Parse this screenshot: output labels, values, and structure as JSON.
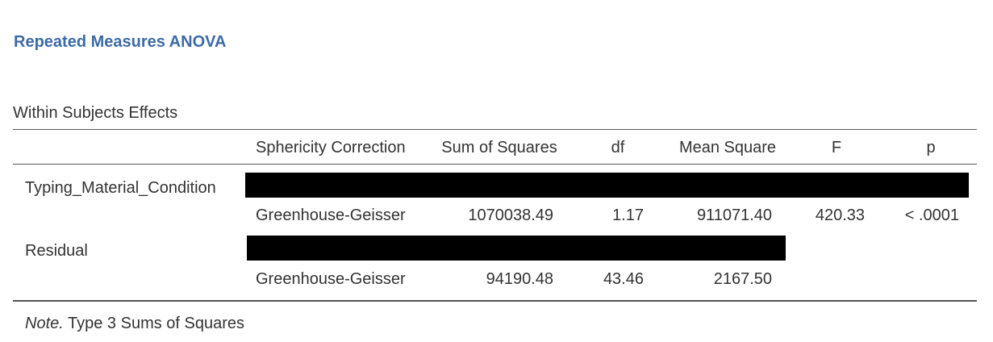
{
  "header": {
    "title": "Repeated Measures ANOVA"
  },
  "table": {
    "caption": "Within Subjects Effects",
    "columns": [
      "Sphericity Correction",
      "Sum of Squares",
      "df",
      "Mean Square",
      "F",
      "p"
    ],
    "rows": [
      {
        "label": "Typing_Material_Condition",
        "correction": "Greenhouse-Geisser",
        "values": [
          "1070038.49",
          "1.17",
          "911071.40",
          "420.33",
          "< .0001"
        ]
      },
      {
        "label": "Residual",
        "correction": "Greenhouse-Geisser",
        "values": [
          "94190.48",
          "43.46",
          "2167.50"
        ]
      }
    ],
    "note": {
      "prefix": "Note.",
      "text": "Type 3 Sums of Squares"
    }
  }
}
